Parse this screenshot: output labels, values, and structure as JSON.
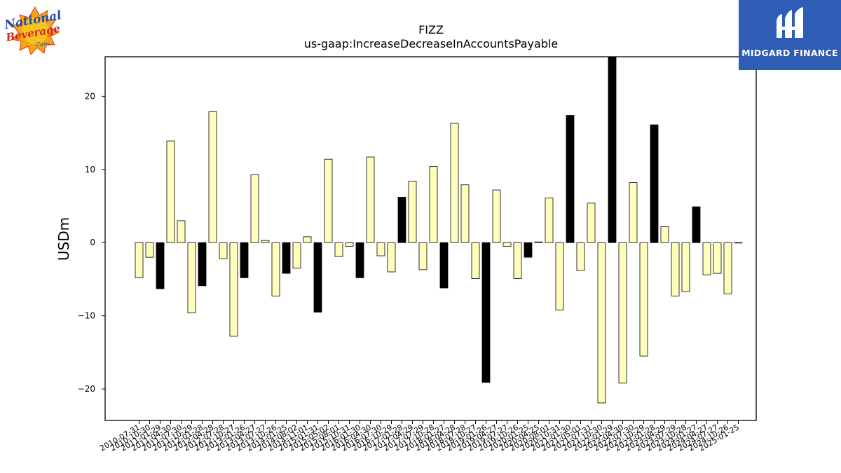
{
  "logos": {
    "left_text": "National Beverage Corp.",
    "right_text": "MIDGARD FINANCE"
  },
  "colors": {
    "positive_bar": "#ffffbb",
    "negative_emphasis_bar": "#000000",
    "right_logo_bg": "#2f5db5"
  },
  "chart_data": {
    "type": "bar",
    "title": "FIZZ",
    "subtitle": "us-gaap:IncreaseDecreaseInAccountsPayable",
    "ylabel": "USDm",
    "xlabel": "",
    "ylim": [
      -24.3,
      25.4
    ],
    "yticks": [
      -20,
      -10,
      0,
      10,
      20
    ],
    "ytick_labels": [
      "−20",
      "−10",
      "0",
      "10",
      "20"
    ],
    "grid": false,
    "categories": [
      "2010-07-31",
      "2010-10-30",
      "2011-01-29",
      "2011-04-30",
      "2011-07-30",
      "2011-10-29",
      "2012-01-28",
      "2012-04-28",
      "2012-07-28",
      "2012-10-27",
      "2013-01-26",
      "2013-04-27",
      "2013-07-27",
      "2013-10-26",
      "2014-01-25",
      "2014-08-02",
      "2014-11-01",
      "2015-01-31",
      "2015-05-02",
      "2015-08-01",
      "2015-10-31",
      "2016-01-30",
      "2016-04-30",
      "2016-07-30",
      "2016-10-29",
      "2017-01-28",
      "2017-04-29",
      "2017-07-29",
      "2017-10-28",
      "2018-01-27",
      "2018-04-28",
      "2018-07-28",
      "2018-10-27",
      "2019-01-26",
      "2019-04-27",
      "2019-07-27",
      "2019-10-26",
      "2020-01-25",
      "2020-04-25",
      "2020-08-01",
      "2020-10-31",
      "2021-01-30",
      "2021-05-01",
      "2021-07-31",
      "2021-10-30",
      "2022-01-29",
      "2022-04-30",
      "2022-07-30",
      "2022-10-29",
      "2023-01-28",
      "2023-04-29",
      "2023-07-29",
      "2023-10-28",
      "2024-01-27",
      "2024-04-27",
      "2024-07-27",
      "2024-10-26",
      "2025-01-25"
    ],
    "values": [
      -4.8,
      -2.0,
      -6.3,
      13.9,
      3.0,
      -9.6,
      -5.9,
      17.9,
      -2.2,
      -12.8,
      -4.8,
      9.3,
      0.3,
      -7.3,
      -4.2,
      -3.5,
      0.8,
      -9.5,
      11.4,
      -1.9,
      -0.5,
      -4.8,
      11.7,
      -1.8,
      -4.0,
      6.2,
      8.4,
      -3.7,
      10.4,
      -6.2,
      16.3,
      7.9,
      -4.9,
      -19.1,
      7.2,
      -0.5,
      -4.9,
      -2.0,
      0.1,
      6.1,
      -9.2,
      17.4,
      -3.8,
      5.4,
      -21.9,
      25.4,
      -19.2,
      8.2,
      -15.5,
      16.1,
      2.2,
      -7.3,
      -6.7,
      4.9,
      -4.4,
      -4.2,
      -7.0,
      0
    ],
    "black_bar_categories": [
      "2011-01-29",
      "2012-01-28",
      "2013-01-26",
      "2014-01-25",
      "2015-01-31",
      "2016-01-30",
      "2017-01-28",
      "2018-01-27",
      "2019-01-26",
      "2020-01-25",
      "2021-01-30",
      "2022-01-29",
      "2023-01-28",
      "2024-01-27",
      "2025-01-25"
    ]
  }
}
